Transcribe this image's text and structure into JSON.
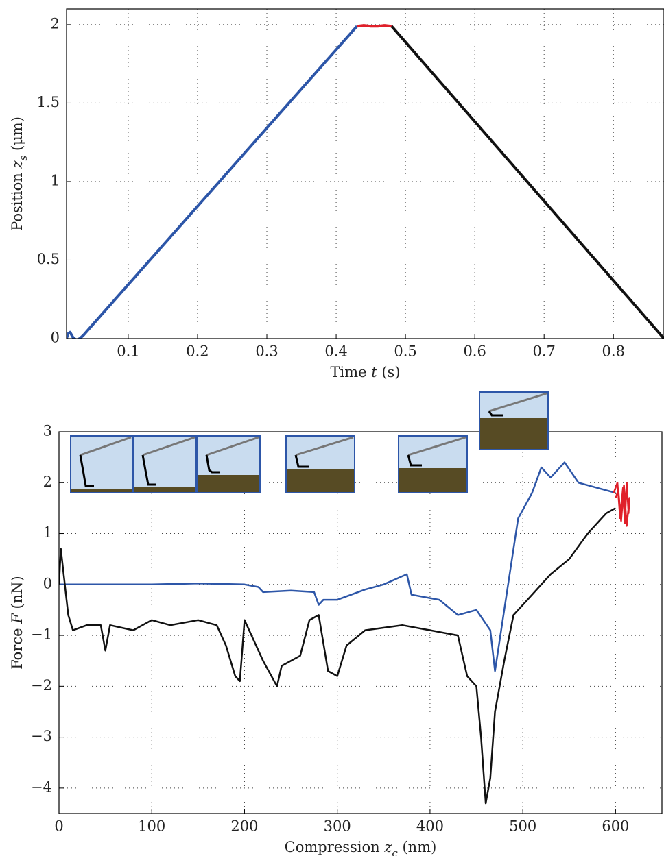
{
  "chart_data": [
    {
      "type": "line",
      "xlabel": [
        "Time ",
        "t",
        " (s)"
      ],
      "ylabel": [
        "Position ",
        "z",
        "s",
        " (μm)"
      ],
      "xlim": [
        0.011,
        0.873
      ],
      "ylim": [
        0,
        2.1
      ],
      "xticks": [
        0.1,
        0.2,
        0.3,
        0.4,
        0.5,
        0.6,
        0.7,
        0.8
      ],
      "yticks": [
        0,
        0.5,
        1,
        1.5,
        2
      ],
      "grid": true,
      "series": [
        {
          "color": "#2d56a8",
          "x": [
            0.011,
            0.013,
            0.016,
            0.02,
            0.025,
            0.03,
            0.035,
            0.43
          ],
          "values": [
            0,
            0.03,
            0.04,
            0.01,
            -0.01,
            0,
            0.02,
            1.99
          ]
        },
        {
          "color": "#e0202a",
          "x": [
            0.43,
            0.44,
            0.45,
            0.46,
            0.47,
            0.48
          ],
          "values": [
            1.99,
            1.995,
            1.99,
            1.99,
            1.995,
            1.99
          ]
        },
        {
          "color": "#111111",
          "x": [
            0.48,
            0.873
          ],
          "values": [
            1.99,
            0
          ]
        }
      ]
    },
    {
      "type": "line",
      "xlabel": [
        "Compression ",
        "z",
        "c",
        " (nm)"
      ],
      "ylabel": [
        "Force ",
        "F",
        " (nN)"
      ],
      "xlim": [
        0,
        650
      ],
      "ylim": [
        -4.5,
        3
      ],
      "xticks": [
        0,
        100,
        200,
        300,
        400,
        500,
        600
      ],
      "yticks": [
        {
          "value": -4,
          "label": "−4"
        },
        {
          "value": -3,
          "label": "−3"
        },
        {
          "value": -2,
          "label": "−2"
        },
        {
          "value": -1,
          "label": "−1"
        },
        0,
        1,
        2,
        3
      ],
      "grid": true,
      "series": [
        {
          "color": "#2d56a8",
          "x": [
            0,
            50,
            100,
            150,
            200,
            215,
            220,
            250,
            275,
            280,
            285,
            300,
            330,
            350,
            375,
            380,
            410,
            430,
            450,
            465,
            470,
            480,
            490,
            495,
            510,
            520,
            530,
            545,
            560,
            580,
            600
          ],
          "values": [
            0,
            0,
            0,
            0.02,
            0,
            -0.05,
            -0.15,
            -0.12,
            -0.15,
            -0.4,
            -0.3,
            -0.3,
            -0.1,
            0,
            0.2,
            -0.2,
            -0.3,
            -0.6,
            -0.5,
            -0.9,
            -1.7,
            -0.5,
            0.7,
            1.3,
            1.8,
            2.3,
            2.1,
            2.4,
            2.0,
            1.9,
            1.8
          ]
        },
        {
          "color": "#111111",
          "x": [
            600,
            590,
            570,
            550,
            530,
            510,
            500,
            490,
            480,
            470,
            465,
            460,
            455,
            450,
            440,
            430,
            400,
            370,
            330,
            310,
            300,
            290,
            280,
            270,
            260,
            240,
            235,
            220,
            200,
            195,
            190,
            180,
            170,
            150,
            120,
            100,
            80,
            55,
            50,
            45,
            30,
            15,
            10,
            5,
            2,
            0
          ],
          "values": [
            1.5,
            1.4,
            1.0,
            0.5,
            0.2,
            -0.2,
            -0.4,
            -0.6,
            -1.5,
            -2.5,
            -3.8,
            -4.3,
            -3.0,
            -2.0,
            -1.8,
            -1.0,
            -0.9,
            -0.8,
            -0.9,
            -1.2,
            -1.8,
            -1.7,
            -0.6,
            -0.7,
            -1.4,
            -1.6,
            -2.0,
            -1.5,
            -0.7,
            -1.9,
            -1.8,
            -1.2,
            -0.8,
            -0.7,
            -0.8,
            -0.7,
            -0.9,
            -0.8,
            -1.3,
            -0.8,
            -0.8,
            -0.9,
            -0.6,
            0.2,
            0.7,
            0
          ]
        },
        {
          "color": "#e0202a",
          "x": [
            598,
            602,
            605,
            608,
            610,
            612,
            614,
            615,
            612,
            609,
            606,
            603,
            600
          ],
          "values": [
            1.8,
            2.0,
            1.3,
            1.9,
            1.2,
            2.0,
            1.4,
            1.7,
            1.15,
            1.95,
            1.25,
            1.85,
            1.7
          ]
        }
      ]
    }
  ]
}
